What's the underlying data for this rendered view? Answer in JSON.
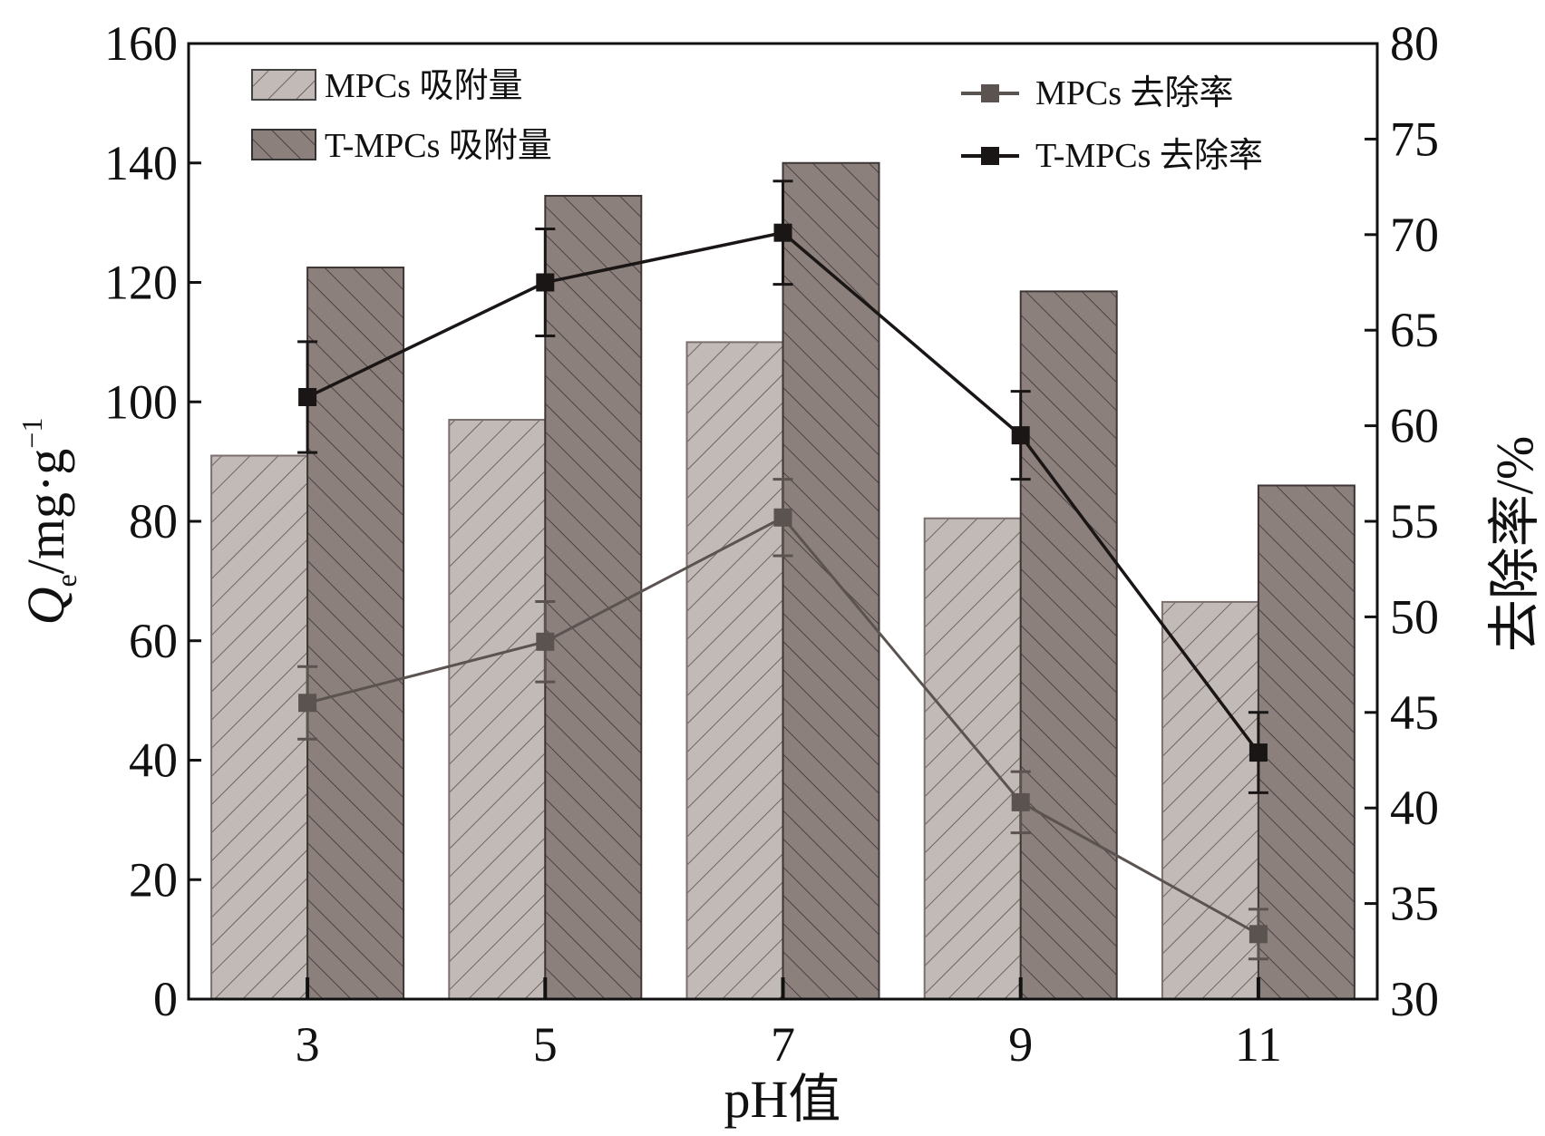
{
  "chart_data": {
    "type": "bar",
    "categories": [
      "3",
      "5",
      "7",
      "9",
      "11"
    ],
    "xlabel": "pH值",
    "ylabel_left": {
      "symbol": "Q",
      "subscript": "e",
      "unit": "/mg·g",
      "sup": "−1"
    },
    "ylabel_right": "去除率/%",
    "ylim_left": [
      0,
      160
    ],
    "yticks_left": [
      0,
      20,
      40,
      60,
      80,
      100,
      120,
      140,
      160
    ],
    "ylim_right": [
      30,
      80
    ],
    "yticks_right": [
      30,
      35,
      40,
      45,
      50,
      55,
      60,
      65,
      70,
      75,
      80
    ],
    "grid": false,
    "legend_placement": "top-left and top-right",
    "series": [
      {
        "name": "MPCs 吸附量",
        "kind": "bar",
        "axis": "left",
        "values": [
          91,
          97,
          110,
          80.5,
          66.5
        ],
        "color": "#bfb6b3",
        "hatch": "forward"
      },
      {
        "name": "T-MPCs 吸附量",
        "kind": "bar",
        "axis": "left",
        "values": [
          122.5,
          134.5,
          140,
          118.5,
          86
        ],
        "color": "#8a7d7a",
        "hatch": "back"
      },
      {
        "name": "MPCs 去除率",
        "kind": "line",
        "axis": "right",
        "values": [
          45.5,
          48.7,
          55.2,
          40.3,
          33.4
        ],
        "errors": [
          1.9,
          2.1,
          2.0,
          1.6,
          1.3
        ],
        "color": "#5b5350"
      },
      {
        "name": "T-MPCs 去除率",
        "kind": "line",
        "axis": "right",
        "values": [
          61.5,
          67.5,
          70.1,
          59.5,
          42.9
        ],
        "errors": [
          2.9,
          2.8,
          2.7,
          2.3,
          2.1
        ],
        "color": "#1a1616"
      }
    ]
  }
}
